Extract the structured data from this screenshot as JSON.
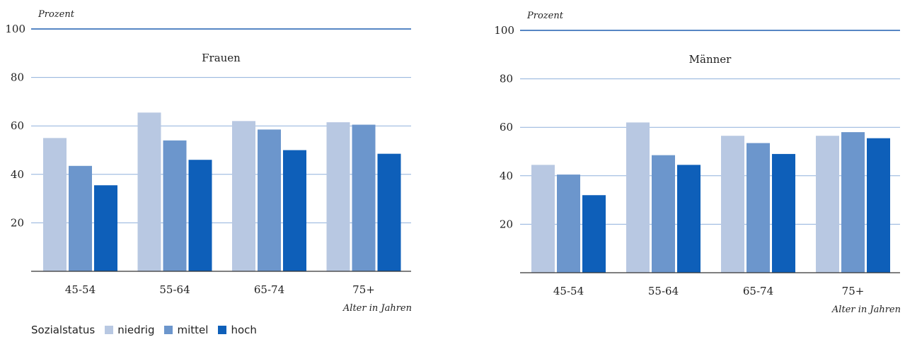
{
  "chart_data": [
    {
      "type": "bar",
      "title": "Frauen",
      "ylabel": "Prozent",
      "xlabel": "Alter in Jahren",
      "categories": [
        "45-54",
        "55-64",
        "65-74",
        "75+"
      ],
      "yticks": [
        20,
        40,
        60,
        80,
        100
      ],
      "ylim": [
        0,
        100
      ],
      "grid": true,
      "series": [
        {
          "name": "niedrig",
          "values": [
            55,
            65.5,
            62,
            61.5
          ]
        },
        {
          "name": "mittel",
          "values": [
            43.5,
            54,
            58.5,
            60.5
          ]
        },
        {
          "name": "hoch",
          "values": [
            35.5,
            46,
            50,
            48.5
          ]
        }
      ]
    },
    {
      "type": "bar",
      "title": "Männer",
      "ylabel": "Prozent",
      "xlabel": "Alter in Jahren",
      "categories": [
        "45-54",
        "55-64",
        "65-74",
        "75+"
      ],
      "yticks": [
        20,
        40,
        60,
        80,
        100
      ],
      "ylim": [
        0,
        100
      ],
      "grid": true,
      "series": [
        {
          "name": "niedrig",
          "values": [
            44.5,
            62,
            56.5,
            56.5
          ]
        },
        {
          "name": "mittel",
          "values": [
            40.5,
            48.5,
            53.5,
            58
          ]
        },
        {
          "name": "hoch",
          "values": [
            32,
            44.5,
            49,
            55.5
          ]
        }
      ]
    }
  ],
  "colors": {
    "niedrig": "#b8c8e2",
    "mittel": "#6c96cc",
    "hoch": "#0e5fb9",
    "gridline": "#8fb0dc",
    "topline": "#1f5fb0",
    "axis": "#333333"
  },
  "legend": {
    "title": "Sozialstatus",
    "items": [
      "niedrig",
      "mittel",
      "hoch"
    ]
  }
}
